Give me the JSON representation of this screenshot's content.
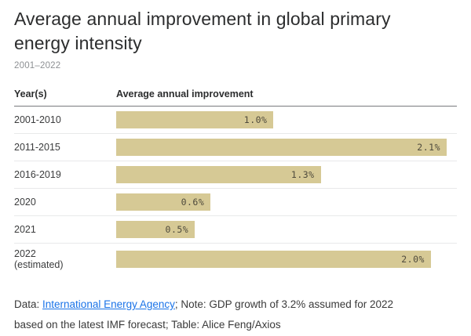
{
  "header": {
    "title": "Average annual improvement in global primary energy intensity",
    "subtitle": "2001–2022"
  },
  "chart_data": {
    "type": "bar",
    "orientation": "horizontal",
    "title": "Average annual improvement in global primary energy intensity",
    "subtitle": "2001–2022",
    "column_headers": [
      "Year(s)",
      "Average annual improvement"
    ],
    "categories": [
      "2001-2010",
      "2011-2015",
      "2016-2019",
      "2020",
      "2021",
      "2022 (estimated)"
    ],
    "values": [
      1.0,
      2.1,
      1.3,
      0.6,
      0.5,
      2.0
    ],
    "value_labels": [
      "1.0%",
      "2.1%",
      "1.3%",
      "0.6%",
      "0.5%",
      "2.0%"
    ],
    "xlim": [
      0,
      2.1
    ],
    "grid": false,
    "legend": "none",
    "bar_color": "#d6c995",
    "value_label_color": "#4e4a3c"
  },
  "rows": [
    {
      "label": "2001-2010",
      "label2": "",
      "value": 1.0,
      "display": "1.0%"
    },
    {
      "label": "2011-2015",
      "label2": "",
      "value": 2.1,
      "display": "2.1%"
    },
    {
      "label": "2016-2019",
      "label2": "",
      "value": 1.3,
      "display": "1.3%"
    },
    {
      "label": "2020",
      "label2": "",
      "value": 0.6,
      "display": "0.6%"
    },
    {
      "label": "2021",
      "label2": "",
      "value": 0.5,
      "display": "0.5%"
    },
    {
      "label": "2022",
      "label2": "(estimated)",
      "value": 2.0,
      "display": "2.0%"
    }
  ],
  "footer": {
    "prefix": "Data: ",
    "link": "International Energy Agency",
    "after_link": "; Note: GDP growth of 3.2% assumed for 2022",
    "line2": "based on the latest IMF forecast; Table: Alice Feng/Axios"
  },
  "colors": {
    "bar": "#d6c995",
    "title": "#2c2d2e",
    "subtitle": "#8d9093",
    "link": "#1a73e8",
    "header_rule": "#787a7d",
    "row_separator": "#e8e9ea"
  }
}
